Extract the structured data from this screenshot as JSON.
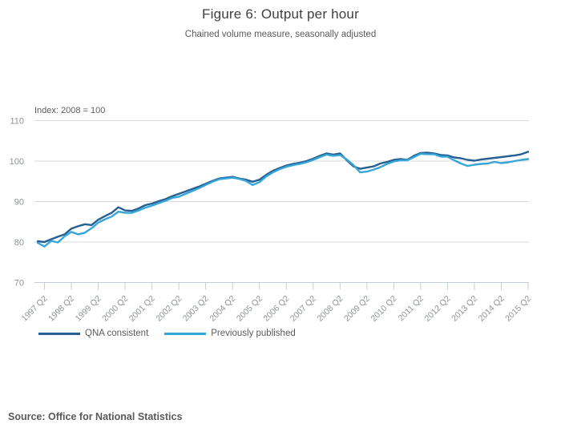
{
  "header": {
    "title": "Figure 6: Output per hour",
    "subtitle": "Chained volume measure, seasonally adjusted"
  },
  "footer": {
    "source": "Source: Office for National Statistics"
  },
  "palette": {
    "qna_consistent": "#265f92",
    "previously_published": "#36a5d8",
    "gridline": "#d9d9d9",
    "axis_line": "#c4cbd2",
    "tick_label": "#8f9499",
    "text": "#5b5b5b"
  },
  "chart_data": {
    "type": "line",
    "title": "Figure 6: Output per hour",
    "subtitle": "Chained volume measure, seasonally adjusted",
    "index_note": "Index: 2008 = 100",
    "xlabel": "",
    "ylabel": "Index: 2008 = 100",
    "x_frequency": "quarterly",
    "x_start": "1997 Q1",
    "x_end": "2015 Q2",
    "x_tick_labels": [
      "1997 Q2",
      "1998 Q2",
      "1999 Q2",
      "2000 Q2",
      "2001 Q2",
      "2002 Q2",
      "2003 Q2",
      "2004 Q2",
      "2005 Q2",
      "2006 Q2",
      "2007 Q2",
      "2008 Q2",
      "2009 Q2",
      "2010 Q2",
      "2011 Q2",
      "2012 Q2",
      "2013 Q2",
      "2014 Q2",
      "2015 Q2"
    ],
    "y_ticks": [
      110,
      100,
      90,
      80,
      70
    ],
    "ylim": [
      66,
      113
    ],
    "grid": "horizontal",
    "legend_position": "bottom-left",
    "series": [
      {
        "name": "QNA consistent",
        "color": "#265f92",
        "values": [
          80.2,
          80.0,
          80.7,
          81.3,
          81.9,
          83.3,
          83.9,
          84.4,
          84.2,
          85.5,
          86.4,
          87.2,
          88.6,
          87.8,
          87.7,
          88.3,
          89.1,
          89.5,
          90.1,
          90.6,
          91.3,
          91.9,
          92.5,
          93.1,
          93.7,
          94.4,
          95.1,
          95.7,
          95.9,
          96.1,
          95.7,
          95.4,
          94.9,
          95.4,
          96.6,
          97.6,
          98.3,
          98.9,
          99.3,
          99.6,
          100.0,
          100.6,
          101.3,
          101.9,
          101.6,
          101.9,
          100.2,
          98.7,
          98.1,
          98.4,
          98.7,
          99.4,
          99.8,
          100.3,
          100.5,
          100.3,
          101.3,
          102.0,
          102.1,
          101.9,
          101.5,
          101.4,
          100.9,
          100.7,
          100.3,
          100.1,
          100.4,
          100.6,
          100.8,
          101.0,
          101.2,
          101.4,
          101.7,
          102.3
        ]
      },
      {
        "name": "Previously published",
        "color": "#36a5d8",
        "values": [
          79.8,
          78.9,
          80.3,
          79.9,
          81.4,
          82.5,
          81.9,
          82.3,
          83.4,
          84.8,
          85.6,
          86.3,
          87.5,
          87.2,
          87.2,
          87.8,
          88.5,
          89.0,
          89.6,
          90.2,
          90.9,
          91.2,
          91.9,
          92.6,
          93.3,
          94.1,
          94.9,
          95.5,
          95.7,
          95.9,
          95.6,
          95.1,
          94.1,
          94.8,
          96.2,
          97.2,
          98.0,
          98.6,
          99.0,
          99.3,
          99.7,
          100.3,
          101.0,
          101.6,
          101.3,
          101.5,
          100.4,
          99.0,
          97.2,
          97.4,
          97.9,
          98.5,
          99.3,
          99.9,
          100.2,
          100.2,
          101.0,
          101.8,
          101.7,
          101.7,
          101.1,
          101.1,
          100.2,
          99.4,
          98.8,
          99.1,
          99.3,
          99.4,
          99.8,
          99.5,
          99.7,
          100.0,
          100.3,
          100.5
        ]
      }
    ]
  }
}
